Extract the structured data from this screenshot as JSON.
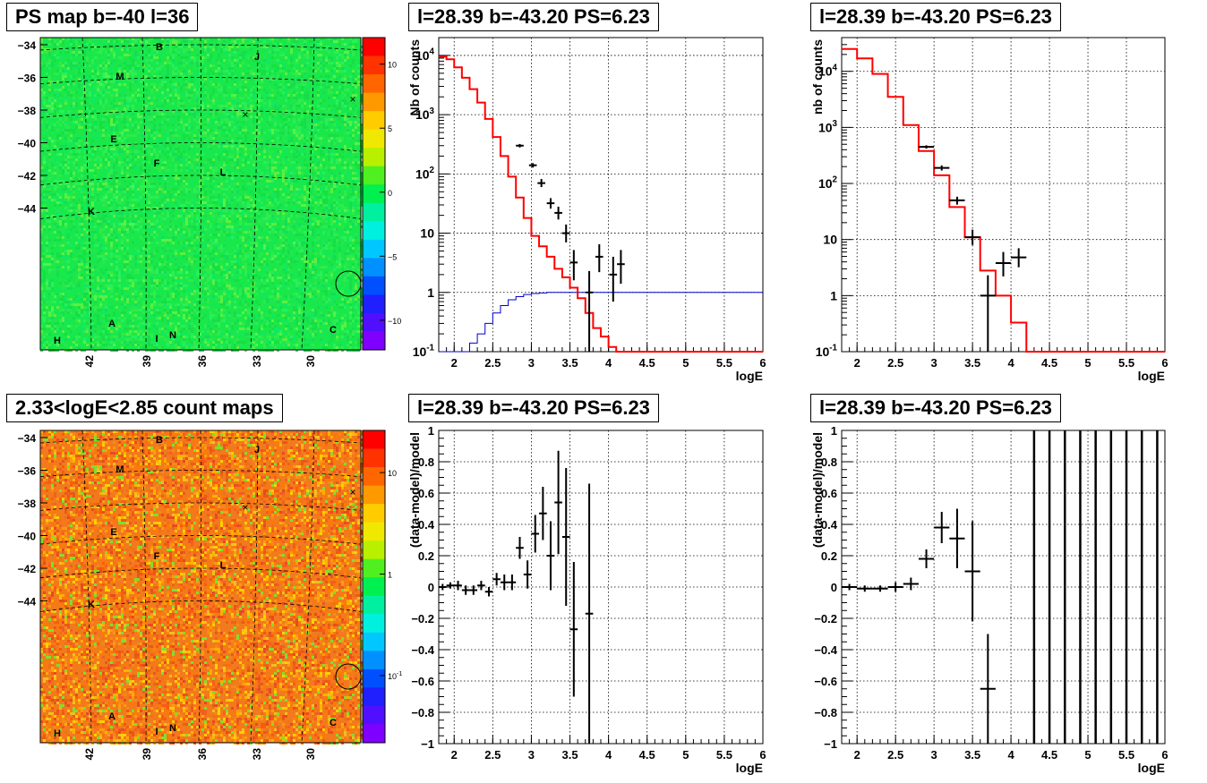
{
  "panels": {
    "map_ps": {
      "title": "PS map b=-40 l=36",
      "y_ticks": [
        "-34",
        "-36",
        "-38",
        "-40",
        "-42",
        "-44"
      ],
      "x_ticks": [
        "42",
        "39",
        "36",
        "33",
        "30"
      ],
      "colorbar_ticks": [
        "10",
        "5",
        "0",
        "-5",
        "-10"
      ],
      "labels": [
        "B",
        "J",
        "M",
        "E",
        "F",
        "L",
        "K",
        "A",
        "C",
        "H",
        "I",
        "N"
      ],
      "colors": {
        "background": "#19e84a",
        "speckle": "#3cf050"
      }
    },
    "map_counts": {
      "title": "2.33<logE<2.85 count maps",
      "y_ticks": [
        "-34",
        "-36",
        "-38",
        "-40",
        "-42",
        "-44"
      ],
      "x_ticks": [
        "42",
        "39",
        "36",
        "33",
        "30"
      ],
      "colorbar_ticks": [
        "10",
        "1",
        "10-1"
      ],
      "labels": [
        "B",
        "J",
        "M",
        "E",
        "F",
        "L",
        "K",
        "A",
        "C",
        "H",
        "I",
        "N"
      ],
      "colors": {
        "background": "#f27a1c",
        "speckle": "#ffb000"
      }
    }
  },
  "chart_data": [
    {
      "type": "line",
      "title": "l=28.39 b=-43.20 PS=6.23",
      "xlabel": "logE",
      "ylabel": "Nb of counts",
      "log_y": true,
      "xlim": [
        1.8,
        6
      ],
      "ylim": [
        0.1,
        20000
      ],
      "x_ticks": [
        "2",
        "2.5",
        "3",
        "3.5",
        "4",
        "4.5",
        "5",
        "5.5",
        "6"
      ],
      "y_ticks": [
        "10^{4}",
        "10^{3}",
        "10^{2}",
        "10",
        "1",
        "10^{-1}"
      ],
      "grid": true,
      "model_red": {
        "edges": [
          1.8,
          1.9,
          2.0,
          2.1,
          2.2,
          2.3,
          2.4,
          2.5,
          2.6,
          2.7,
          2.8,
          2.9,
          3.0,
          3.1,
          3.2,
          3.3,
          3.4,
          3.5,
          3.6,
          3.7,
          3.8,
          3.9,
          4.0,
          4.1,
          4.2,
          6.0
        ],
        "values": [
          9500,
          8600,
          6300,
          4200,
          2700,
          1600,
          850,
          420,
          200,
          90,
          40,
          18,
          9,
          6,
          4,
          2.5,
          1.8,
          1.2,
          0.8,
          0.45,
          0.25,
          0.18,
          0.12,
          0.1,
          0.1
        ]
      },
      "model_blue": {
        "edges": [
          1.8,
          2.2,
          2.3,
          2.4,
          2.5,
          2.6,
          2.7,
          2.8,
          2.9,
          3.0,
          3.1,
          3.2,
          6.0
        ],
        "values": [
          0.1,
          0.14,
          0.2,
          0.3,
          0.45,
          0.6,
          0.75,
          0.85,
          0.92,
          0.96,
          0.98,
          1.0
        ]
      },
      "data": [
        {
          "x": 2.85,
          "y": 300,
          "xerr": 0.05,
          "ylo": 280,
          "yhi": 320
        },
        {
          "x": 3.02,
          "y": 140,
          "xerr": 0.05,
          "ylo": 128,
          "yhi": 152
        },
        {
          "x": 3.13,
          "y": 70,
          "xerr": 0.05,
          "ylo": 60,
          "yhi": 82
        },
        {
          "x": 3.25,
          "y": 32,
          "xerr": 0.05,
          "ylo": 26,
          "yhi": 39
        },
        {
          "x": 3.35,
          "y": 22,
          "xerr": 0.05,
          "ylo": 17,
          "yhi": 28
        },
        {
          "x": 3.45,
          "y": 10,
          "xerr": 0.05,
          "ylo": 7,
          "yhi": 14
        },
        {
          "x": 3.55,
          "y": 3.2,
          "xerr": 0.05,
          "ylo": 1.6,
          "yhi": 5.2
        },
        {
          "x": 3.75,
          "y": 1,
          "xerr": 0.05,
          "ylo": 0.1,
          "yhi": 2.3
        },
        {
          "x": 3.88,
          "y": 4,
          "xerr": 0.05,
          "ylo": 2.2,
          "yhi": 6.5
        },
        {
          "x": 4.06,
          "y": 2,
          "xerr": 0.05,
          "ylo": 0.7,
          "yhi": 4
        },
        {
          "x": 4.16,
          "y": 3,
          "xerr": 0.05,
          "ylo": 1.4,
          "yhi": 5.2
        }
      ]
    },
    {
      "type": "line",
      "title": "l=28.39 b=-43.20 PS=6.23",
      "xlabel": "logE",
      "ylabel": "nb of counts",
      "log_y": true,
      "xlim": [
        1.8,
        6
      ],
      "ylim": [
        0.1,
        40000
      ],
      "x_ticks": [
        "2",
        "2.5",
        "3",
        "3.5",
        "4",
        "4.5",
        "5",
        "5.5",
        "6"
      ],
      "y_ticks": [
        "10^{4}",
        "10^{3}",
        "10^{2}",
        "10",
        "1",
        "10^{-1}"
      ],
      "grid": true,
      "model_red": {
        "edges": [
          1.8,
          2.0,
          2.2,
          2.4,
          2.6,
          2.8,
          3.0,
          3.2,
          3.4,
          3.6,
          3.8,
          4.0,
          4.2,
          6.0
        ],
        "values": [
          25000,
          17000,
          9000,
          3500,
          1100,
          380,
          140,
          38,
          11,
          2.8,
          1,
          0.33,
          0.1
        ]
      },
      "data": [
        {
          "x": 2.9,
          "y": 450,
          "xerr": 0.1,
          "ylo": 420,
          "yhi": 480
        },
        {
          "x": 3.1,
          "y": 190,
          "xerr": 0.1,
          "ylo": 170,
          "yhi": 210
        },
        {
          "x": 3.3,
          "y": 50,
          "xerr": 0.1,
          "ylo": 42,
          "yhi": 58
        },
        {
          "x": 3.5,
          "y": 11,
          "xerr": 0.1,
          "ylo": 8,
          "yhi": 15
        },
        {
          "x": 3.7,
          "y": 1,
          "xerr": 0.1,
          "ylo": 0.1,
          "yhi": 2.3
        },
        {
          "x": 3.9,
          "y": 3.8,
          "xerr": 0.1,
          "ylo": 2.2,
          "yhi": 6
        },
        {
          "x": 4.1,
          "y": 4.8,
          "xerr": 0.1,
          "ylo": 3.2,
          "yhi": 7
        }
      ]
    },
    {
      "type": "scatter",
      "title": "l=28.39 b=-43.20 PS=6.23",
      "xlabel": "logE",
      "ylabel": "(data-model)/model",
      "xlim": [
        1.8,
        6
      ],
      "ylim": [
        -1,
        1
      ],
      "x_ticks": [
        "2",
        "2.5",
        "3",
        "3.5",
        "4",
        "4.5",
        "5",
        "5.5",
        "6"
      ],
      "y_ticks": [
        "1",
        "0.8",
        "0.6",
        "0.4",
        "0.2",
        "0",
        "-0.2",
        "-0.4",
        "-0.6",
        "-0.8",
        "-1"
      ],
      "grid": true,
      "data": [
        {
          "x": 1.85,
          "y": 0.0,
          "xerr": 0.05,
          "err": 0.02
        },
        {
          "x": 1.95,
          "y": 0.01,
          "xerr": 0.05,
          "err": 0.02
        },
        {
          "x": 2.05,
          "y": 0.01,
          "xerr": 0.05,
          "err": 0.03
        },
        {
          "x": 2.15,
          "y": -0.02,
          "xerr": 0.05,
          "err": 0.03
        },
        {
          "x": 2.25,
          "y": -0.02,
          "xerr": 0.05,
          "err": 0.03
        },
        {
          "x": 2.35,
          "y": 0.01,
          "xerr": 0.05,
          "err": 0.03
        },
        {
          "x": 2.45,
          "y": -0.03,
          "xerr": 0.05,
          "err": 0.03
        },
        {
          "x": 2.55,
          "y": 0.05,
          "xerr": 0.05,
          "err": 0.04
        },
        {
          "x": 2.65,
          "y": 0.03,
          "xerr": 0.05,
          "err": 0.05
        },
        {
          "x": 2.75,
          "y": 0.03,
          "xerr": 0.05,
          "err": 0.05
        },
        {
          "x": 2.85,
          "y": 0.25,
          "xerr": 0.05,
          "err": 0.07
        },
        {
          "x": 2.95,
          "y": 0.08,
          "xerr": 0.05,
          "err": 0.09
        },
        {
          "x": 3.05,
          "y": 0.34,
          "xerr": 0.05,
          "err": 0.12
        },
        {
          "x": 3.15,
          "y": 0.47,
          "xerr": 0.05,
          "err": 0.17
        },
        {
          "x": 3.25,
          "y": 0.2,
          "xerr": 0.05,
          "err": 0.22
        },
        {
          "x": 3.35,
          "y": 0.54,
          "xerr": 0.05,
          "err": 0.33
        },
        {
          "x": 3.45,
          "y": 0.32,
          "xerr": 0.05,
          "err": 0.44
        },
        {
          "x": 3.55,
          "y": -0.27,
          "xerr": 0.05,
          "err": 0.43
        },
        {
          "x": 3.75,
          "y": -0.17,
          "xerr": 0.05,
          "err": 0.83
        }
      ]
    },
    {
      "type": "scatter",
      "title": "l=28.39 b=-43.20 PS=6.23",
      "xlabel": "logE",
      "ylabel": "(data-model)/model",
      "xlim": [
        1.8,
        6
      ],
      "ylim": [
        -1,
        1
      ],
      "x_ticks": [
        "2",
        "2.5",
        "3",
        "3.5",
        "4",
        "4.5",
        "5",
        "5.5",
        "6"
      ],
      "y_ticks": [
        "1",
        "0.8",
        "0.6",
        "0.4",
        "0.2",
        "0",
        "-0.2",
        "-0.4",
        "-0.6",
        "-0.8",
        "-1"
      ],
      "grid": true,
      "data": [
        {
          "x": 1.9,
          "y": 0.0,
          "xerr": 0.1,
          "err": 0.02
        },
        {
          "x": 2.1,
          "y": -0.01,
          "xerr": 0.1,
          "err": 0.02
        },
        {
          "x": 2.3,
          "y": -0.01,
          "xerr": 0.1,
          "err": 0.02
        },
        {
          "x": 2.5,
          "y": 0.0,
          "xerr": 0.1,
          "err": 0.03
        },
        {
          "x": 2.7,
          "y": 0.02,
          "xerr": 0.1,
          "err": 0.04
        },
        {
          "x": 2.9,
          "y": 0.18,
          "xerr": 0.1,
          "err": 0.06
        },
        {
          "x": 3.1,
          "y": 0.38,
          "xerr": 0.1,
          "err": 0.1
        },
        {
          "x": 3.3,
          "y": 0.31,
          "xerr": 0.1,
          "err": 0.19
        },
        {
          "x": 3.5,
          "y": 0.1,
          "xerr": 0.1,
          "err": 0.32
        },
        {
          "x": 3.7,
          "y": -0.65,
          "xerr": 0.1,
          "err": 0.35
        }
      ],
      "full_bars_x": [
        4.3,
        4.5,
        4.7,
        4.9,
        5.1,
        5.3,
        5.5,
        5.7,
        5.9
      ]
    }
  ]
}
